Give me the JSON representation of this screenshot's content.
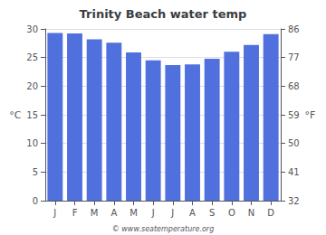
{
  "chart_data": {
    "type": "bar",
    "title": "Trinity Beach water temp",
    "categories": [
      "J",
      "F",
      "M",
      "A",
      "M",
      "J",
      "J",
      "A",
      "S",
      "O",
      "N",
      "D"
    ],
    "values": [
      29.3,
      29.2,
      28.2,
      27.6,
      25.9,
      24.5,
      23.7,
      23.8,
      24.8,
      26.0,
      27.2,
      29.1
    ],
    "ylabel": "°C",
    "ylim": [
      0,
      30
    ],
    "yticks": [
      0,
      5,
      10,
      15,
      20,
      25,
      30
    ],
    "y2label": "°F",
    "y2lim": [
      32,
      86
    ],
    "y2ticks": [
      32,
      41,
      50,
      59,
      68,
      77,
      86
    ],
    "grid": true,
    "annotations": [
      "© www.seatemperature.org"
    ]
  }
}
